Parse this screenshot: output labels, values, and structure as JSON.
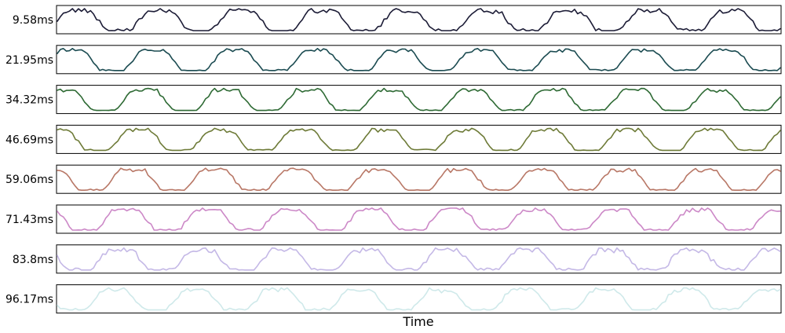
{
  "chart_data": {
    "type": "line",
    "layout": "stacked-small-multiples",
    "xlabel": "Time",
    "ylabel": "",
    "title": "",
    "grid": false,
    "legend": "none",
    "x_ticks": "none",
    "y_ticks": "none",
    "x_count": 240,
    "period_points": 27,
    "series": [
      {
        "name": "9.58ms",
        "color": "#1c1c36",
        "phase": 0,
        "noise": 0.09
      },
      {
        "name": "21.95ms",
        "color": "#1b4b51",
        "phase": 2,
        "noise": 0.05
      },
      {
        "name": "34.32ms",
        "color": "#2e6a34",
        "phase": 5,
        "noise": 0.04
      },
      {
        "name": "46.69ms",
        "color": "#6e7b38",
        "phase": 7,
        "noise": 0.05
      },
      {
        "name": "59.06ms",
        "color": "#b87766",
        "phase": 9,
        "noise": 0.05
      },
      {
        "name": "71.43ms",
        "color": "#cc88c7",
        "phase": 11,
        "noise": 0.07
      },
      {
        "name": "83.8ms",
        "color": "#c4b8e6",
        "phase": 13,
        "noise": 0.09
      },
      {
        "name": "96.17ms",
        "color": "#cfe9ea",
        "phase": 15,
        "noise": 0.08
      }
    ]
  }
}
